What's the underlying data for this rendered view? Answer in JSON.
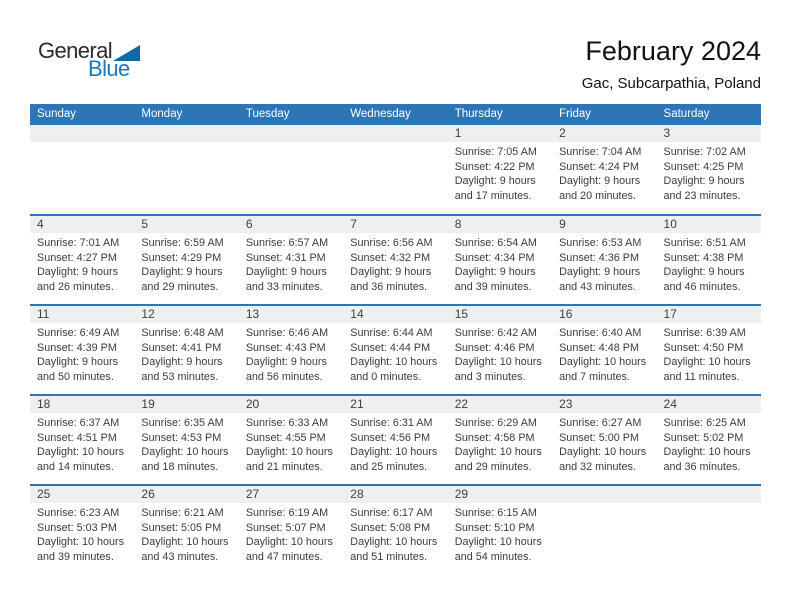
{
  "logo": {
    "general": "General",
    "blue": "Blue",
    "triangle_icon": "blue-right-triangle"
  },
  "header": {
    "title": "February 2024",
    "subtitle": "Gac, Subcarpathia, Poland"
  },
  "weekdays": [
    "Sunday",
    "Monday",
    "Tuesday",
    "Wednesday",
    "Thursday",
    "Friday",
    "Saturday"
  ],
  "colors": {
    "header_blue": "#2E75B6",
    "row_border_blue": "#2E75B6",
    "day_band_gray": "#EFEFEF",
    "logo_blue": "#1879C0",
    "logo_triangle_blue": "#1567A4",
    "text_dark": "#3C3C3C"
  },
  "weeks": [
    {
      "cells": [
        null,
        null,
        null,
        null,
        {
          "day": "1",
          "lines": [
            "Sunrise: 7:05 AM",
            "Sunset: 4:22 PM",
            "Daylight: 9 hours",
            "and 17 minutes."
          ]
        },
        {
          "day": "2",
          "lines": [
            "Sunrise: 7:04 AM",
            "Sunset: 4:24 PM",
            "Daylight: 9 hours",
            "and 20 minutes."
          ]
        },
        {
          "day": "3",
          "lines": [
            "Sunrise: 7:02 AM",
            "Sunset: 4:25 PM",
            "Daylight: 9 hours",
            "and 23 minutes."
          ]
        }
      ]
    },
    {
      "cells": [
        {
          "day": "4",
          "lines": [
            "Sunrise: 7:01 AM",
            "Sunset: 4:27 PM",
            "Daylight: 9 hours",
            "and 26 minutes."
          ]
        },
        {
          "day": "5",
          "lines": [
            "Sunrise: 6:59 AM",
            "Sunset: 4:29 PM",
            "Daylight: 9 hours",
            "and 29 minutes."
          ]
        },
        {
          "day": "6",
          "lines": [
            "Sunrise: 6:57 AM",
            "Sunset: 4:31 PM",
            "Daylight: 9 hours",
            "and 33 minutes."
          ]
        },
        {
          "day": "7",
          "lines": [
            "Sunrise: 6:56 AM",
            "Sunset: 4:32 PM",
            "Daylight: 9 hours",
            "and 36 minutes."
          ]
        },
        {
          "day": "8",
          "lines": [
            "Sunrise: 6:54 AM",
            "Sunset: 4:34 PM",
            "Daylight: 9 hours",
            "and 39 minutes."
          ]
        },
        {
          "day": "9",
          "lines": [
            "Sunrise: 6:53 AM",
            "Sunset: 4:36 PM",
            "Daylight: 9 hours",
            "and 43 minutes."
          ]
        },
        {
          "day": "10",
          "lines": [
            "Sunrise: 6:51 AM",
            "Sunset: 4:38 PM",
            "Daylight: 9 hours",
            "and 46 minutes."
          ]
        }
      ]
    },
    {
      "cells": [
        {
          "day": "11",
          "lines": [
            "Sunrise: 6:49 AM",
            "Sunset: 4:39 PM",
            "Daylight: 9 hours",
            "and 50 minutes."
          ]
        },
        {
          "day": "12",
          "lines": [
            "Sunrise: 6:48 AM",
            "Sunset: 4:41 PM",
            "Daylight: 9 hours",
            "and 53 minutes."
          ]
        },
        {
          "day": "13",
          "lines": [
            "Sunrise: 6:46 AM",
            "Sunset: 4:43 PM",
            "Daylight: 9 hours",
            "and 56 minutes."
          ]
        },
        {
          "day": "14",
          "lines": [
            "Sunrise: 6:44 AM",
            "Sunset: 4:44 PM",
            "Daylight: 10 hours",
            "and 0 minutes."
          ]
        },
        {
          "day": "15",
          "lines": [
            "Sunrise: 6:42 AM",
            "Sunset: 4:46 PM",
            "Daylight: 10 hours",
            "and 3 minutes."
          ]
        },
        {
          "day": "16",
          "lines": [
            "Sunrise: 6:40 AM",
            "Sunset: 4:48 PM",
            "Daylight: 10 hours",
            "and 7 minutes."
          ]
        },
        {
          "day": "17",
          "lines": [
            "Sunrise: 6:39 AM",
            "Sunset: 4:50 PM",
            "Daylight: 10 hours",
            "and 11 minutes."
          ]
        }
      ]
    },
    {
      "cells": [
        {
          "day": "18",
          "lines": [
            "Sunrise: 6:37 AM",
            "Sunset: 4:51 PM",
            "Daylight: 10 hours",
            "and 14 minutes."
          ]
        },
        {
          "day": "19",
          "lines": [
            "Sunrise: 6:35 AM",
            "Sunset: 4:53 PM",
            "Daylight: 10 hours",
            "and 18 minutes."
          ]
        },
        {
          "day": "20",
          "lines": [
            "Sunrise: 6:33 AM",
            "Sunset: 4:55 PM",
            "Daylight: 10 hours",
            "and 21 minutes."
          ]
        },
        {
          "day": "21",
          "lines": [
            "Sunrise: 6:31 AM",
            "Sunset: 4:56 PM",
            "Daylight: 10 hours",
            "and 25 minutes."
          ]
        },
        {
          "day": "22",
          "lines": [
            "Sunrise: 6:29 AM",
            "Sunset: 4:58 PM",
            "Daylight: 10 hours",
            "and 29 minutes."
          ]
        },
        {
          "day": "23",
          "lines": [
            "Sunrise: 6:27 AM",
            "Sunset: 5:00 PM",
            "Daylight: 10 hours",
            "and 32 minutes."
          ]
        },
        {
          "day": "24",
          "lines": [
            "Sunrise: 6:25 AM",
            "Sunset: 5:02 PM",
            "Daylight: 10 hours",
            "and 36 minutes."
          ]
        }
      ]
    },
    {
      "cells": [
        {
          "day": "25",
          "lines": [
            "Sunrise: 6:23 AM",
            "Sunset: 5:03 PM",
            "Daylight: 10 hours",
            "and 39 minutes."
          ]
        },
        {
          "day": "26",
          "lines": [
            "Sunrise: 6:21 AM",
            "Sunset: 5:05 PM",
            "Daylight: 10 hours",
            "and 43 minutes."
          ]
        },
        {
          "day": "27",
          "lines": [
            "Sunrise: 6:19 AM",
            "Sunset: 5:07 PM",
            "Daylight: 10 hours",
            "and 47 minutes."
          ]
        },
        {
          "day": "28",
          "lines": [
            "Sunrise: 6:17 AM",
            "Sunset: 5:08 PM",
            "Daylight: 10 hours",
            "and 51 minutes."
          ]
        },
        {
          "day": "29",
          "lines": [
            "Sunrise: 6:15 AM",
            "Sunset: 5:10 PM",
            "Daylight: 10 hours",
            "and 54 minutes."
          ]
        },
        null,
        null
      ]
    }
  ]
}
